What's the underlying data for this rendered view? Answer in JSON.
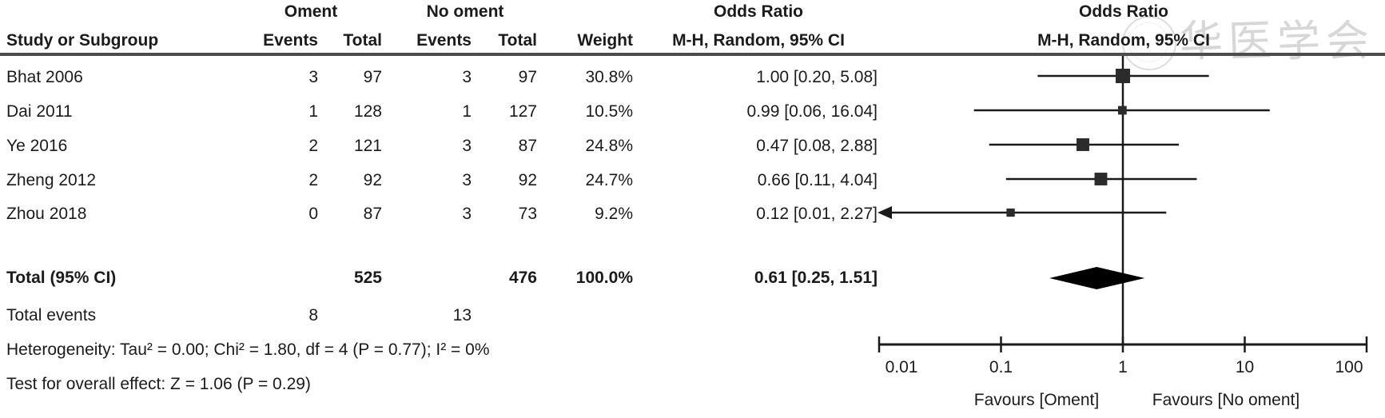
{
  "header": {
    "group1": "Oment",
    "group2": "No oment",
    "study_col": "Study or Subgroup",
    "events_col": "Events",
    "total_col": "Total",
    "weight_col": "Weight",
    "or_text_col": {
      "line1": "Odds Ratio",
      "line2": "M-H, Random, 95% CI"
    },
    "or_plot_col": {
      "line1": "Odds Ratio",
      "line2": "M-H, Random, 95% CI"
    }
  },
  "footer": {
    "total_label": "Total (95% CI)",
    "total_n1": "525",
    "total_n2": "476",
    "total_weight": "100.0%",
    "total_ci": "0.61 [0.25, 1.51]",
    "total_events_label": "Total events",
    "total_events1": "8",
    "total_events2": "13",
    "heterogeneity": "Heterogeneity: Tau² = 0.00; Chi² = 1.80, df = 4 (P = 0.77); I² = 0%",
    "overall_effect": "Test for overall effect: Z = 1.06 (P = 0.29)"
  },
  "watermark": {
    "text": "华医学会"
  },
  "colors": {
    "text": "#1b1b1b",
    "rule": "#4d4d4d",
    "plot_line": "#1a1a1a",
    "square_fill": "#2b2b2b",
    "diamond_fill": "#000000",
    "watermark": "#bdbdbd"
  },
  "chart_data": {
    "type": "forest",
    "effect_measure": "Odds Ratio, M-H, Random, 95% CI",
    "x_scale": "log",
    "x_ticks": [
      0.01,
      0.1,
      1,
      10,
      100
    ],
    "x_tick_labels": [
      "0.01",
      "0.1",
      "1",
      "10",
      "100"
    ],
    "xlim": [
      0.01,
      100
    ],
    "null_line": 1,
    "favours_left": "Favours [Oment]",
    "favours_right": "Favours [No oment]",
    "studies": [
      {
        "name": "Bhat 2006",
        "events1": "3",
        "total1": "97",
        "events2": "3",
        "total2": "97",
        "weight": 30.8,
        "weight_label": "30.8%",
        "or": 1.0,
        "lo": 0.2,
        "hi": 5.08,
        "ci_label": "1.00 [0.20, 5.08]",
        "arrow_left": false
      },
      {
        "name": "Dai 2011",
        "events1": "1",
        "total1": "128",
        "events2": "1",
        "total2": "127",
        "weight": 10.5,
        "weight_label": "10.5%",
        "or": 0.99,
        "lo": 0.06,
        "hi": 16.04,
        "ci_label": "0.99 [0.06, 16.04]",
        "arrow_left": false
      },
      {
        "name": "Ye 2016",
        "events1": "2",
        "total1": "121",
        "events2": "3",
        "total2": "87",
        "weight": 24.8,
        "weight_label": "24.8%",
        "or": 0.47,
        "lo": 0.08,
        "hi": 2.88,
        "ci_label": "0.47 [0.08, 2.88]",
        "arrow_left": false
      },
      {
        "name": "Zheng 2012",
        "events1": "2",
        "total1": "92",
        "events2": "3",
        "total2": "92",
        "weight": 24.7,
        "weight_label": "24.7%",
        "or": 0.66,
        "lo": 0.11,
        "hi": 4.04,
        "ci_label": "0.66 [0.11, 4.04]",
        "arrow_left": false
      },
      {
        "name": "Zhou 2018",
        "events1": "0",
        "total1": "87",
        "events2": "3",
        "total2": "73",
        "weight": 9.2,
        "weight_label": "9.2%",
        "or": 0.12,
        "lo": 0.01,
        "hi": 2.27,
        "ci_label": "0.12 [0.01, 2.27]",
        "arrow_left": true
      }
    ],
    "overall": {
      "or": 0.61,
      "lo": 0.25,
      "hi": 1.51
    }
  }
}
